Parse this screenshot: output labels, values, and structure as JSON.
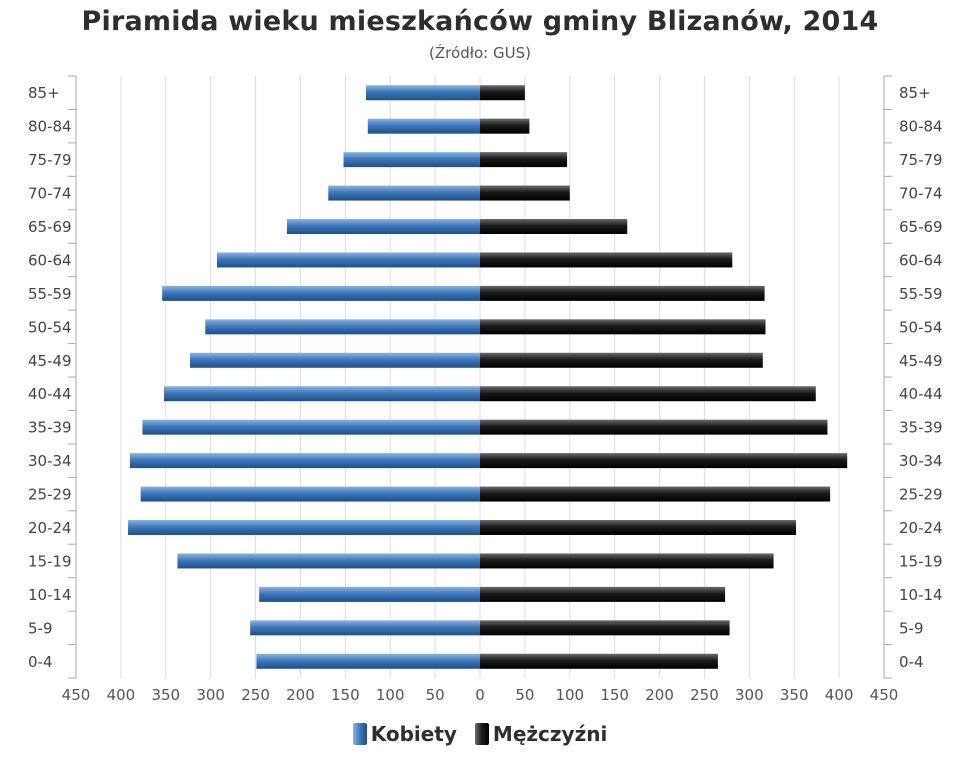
{
  "chart_data": {
    "type": "bar",
    "orientation": "horizontal",
    "title": "Piramida wieku mieszkańców gminy Blizanów, 2014",
    "subtitle": "(Źródło: GUS)",
    "categories": [
      "85+",
      "80-84",
      "75-79",
      "70-74",
      "65-69",
      "60-64",
      "55-59",
      "50-54",
      "45-49",
      "40-44",
      "35-39",
      "30-34",
      "25-29",
      "20-24",
      "15-19",
      "10-14",
      "5-9",
      "0-4"
    ],
    "series": [
      {
        "name": "Kobiety",
        "color": "#3d79bc",
        "values": [
          127,
          125,
          152,
          169,
          215,
          293,
          354,
          306,
          323,
          352,
          376,
          390,
          378,
          392,
          337,
          246,
          256,
          249
        ]
      },
      {
        "name": "Mężczyźni",
        "color": "#1a1a1a",
        "values": [
          50,
          55,
          97,
          100,
          164,
          281,
          317,
          318,
          315,
          374,
          387,
          409,
          390,
          352,
          327,
          273,
          278,
          265
        ]
      }
    ],
    "xlim": [
      -450,
      450
    ],
    "x_ticks": [
      "450",
      "400",
      "350",
      "300",
      "250",
      "200",
      "150",
      "100",
      "50",
      "0",
      "50",
      "100",
      "150",
      "200",
      "250",
      "300",
      "350",
      "400",
      "450"
    ],
    "grid": true,
    "legend_position": "bottom"
  }
}
